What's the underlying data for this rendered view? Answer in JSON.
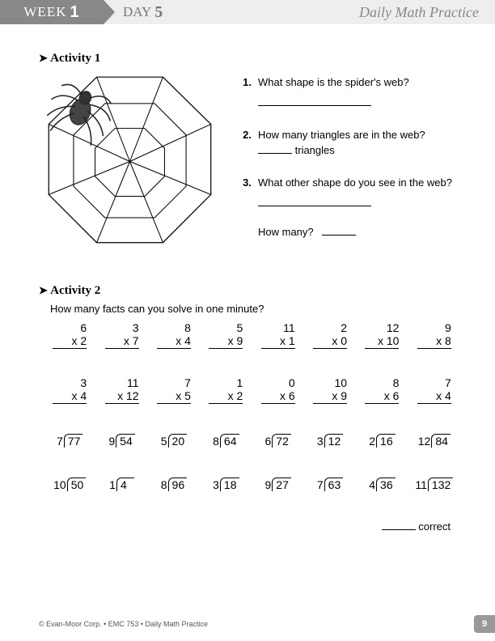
{
  "header": {
    "week_label": "WEEK",
    "week_num": "1",
    "day_label": "DAY",
    "day_num": "5",
    "title": "Daily Math Practice"
  },
  "activity1": {
    "heading": "Activity 1",
    "questions": [
      {
        "num": "1.",
        "text": "What shape is the spider's web?"
      },
      {
        "num": "2.",
        "text": "How many triangles are in the web?",
        "suffix": "triangles"
      },
      {
        "num": "3.",
        "text": "What other shape do you see in the web?"
      }
    ],
    "howmany_label": "How many?"
  },
  "activity2": {
    "heading": "Activity 2",
    "subtitle": "How many facts can you solve in one minute?",
    "mult_rows": [
      [
        {
          "a": "6",
          "b": "2"
        },
        {
          "a": "3",
          "b": "7"
        },
        {
          "a": "8",
          "b": "4"
        },
        {
          "a": "5",
          "b": "9"
        },
        {
          "a": "11",
          "b": "1"
        },
        {
          "a": "2",
          "b": "0"
        },
        {
          "a": "12",
          "b": "10"
        },
        {
          "a": "9",
          "b": "8"
        }
      ],
      [
        {
          "a": "3",
          "b": "4"
        },
        {
          "a": "11",
          "b": "12"
        },
        {
          "a": "7",
          "b": "5"
        },
        {
          "a": "1",
          "b": "2"
        },
        {
          "a": "0",
          "b": "6"
        },
        {
          "a": "10",
          "b": "9"
        },
        {
          "a": "8",
          "b": "6"
        },
        {
          "a": "7",
          "b": "4"
        }
      ]
    ],
    "div_rows": [
      [
        {
          "d": "7",
          "n": "77"
        },
        {
          "d": "9",
          "n": "54"
        },
        {
          "d": "5",
          "n": "20"
        },
        {
          "d": "8",
          "n": "64"
        },
        {
          "d": "6",
          "n": "72"
        },
        {
          "d": "3",
          "n": "12"
        },
        {
          "d": "2",
          "n": "16"
        },
        {
          "d": "12",
          "n": "84"
        }
      ],
      [
        {
          "d": "10",
          "n": "50"
        },
        {
          "d": "1",
          "n": "4"
        },
        {
          "d": "8",
          "n": "96"
        },
        {
          "d": "3",
          "n": "18"
        },
        {
          "d": "9",
          "n": "27"
        },
        {
          "d": "7",
          "n": "63"
        },
        {
          "d": "4",
          "n": "36"
        },
        {
          "d": "11",
          "n": "132"
        }
      ]
    ],
    "correct_label": "correct"
  },
  "footer": {
    "copyright": "© Evan-Moor Corp. • EMC 753 • Daily Math Practice",
    "pagenum": "9"
  },
  "colors": {
    "header_gray": "#888888",
    "light_gray": "#eeeeee",
    "text": "#000000"
  }
}
